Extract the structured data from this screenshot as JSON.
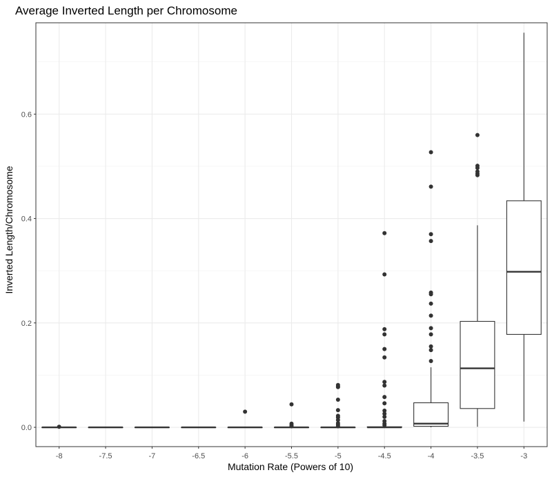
{
  "chart_data": {
    "type": "box",
    "title": "Average Inverted Length per Chromosome",
    "xlabel": "Mutation Rate (Powers of 10)",
    "ylabel": "Inverted Length/Chromosome",
    "categories": [
      "-8",
      "-7.5",
      "-7",
      "-6.5",
      "-6",
      "-5.5",
      "-5",
      "-4.5",
      "-4",
      "-3.5",
      "-3"
    ],
    "y_ticks": [
      0.0,
      0.2,
      0.4,
      0.6
    ],
    "y_tick_labels": [
      "0.0",
      "0.2",
      "0.4",
      "0.6"
    ],
    "ylim": [
      -0.037,
      0.775
    ],
    "grid": true,
    "boxes": [
      {
        "category": "-8",
        "lower_whisker": 0,
        "q1": 0,
        "median": 0,
        "q3": 0,
        "upper_whisker": 0,
        "outliers": [
          0.001
        ]
      },
      {
        "category": "-7.5",
        "lower_whisker": 0,
        "q1": 0,
        "median": 0,
        "q3": 0,
        "upper_whisker": 0,
        "outliers": []
      },
      {
        "category": "-7",
        "lower_whisker": 0,
        "q1": 0,
        "median": 0,
        "q3": 0,
        "upper_whisker": 0,
        "outliers": []
      },
      {
        "category": "-6.5",
        "lower_whisker": 0,
        "q1": 0,
        "median": 0,
        "q3": 0,
        "upper_whisker": 0,
        "outliers": []
      },
      {
        "category": "-6",
        "lower_whisker": 0,
        "q1": 0,
        "median": 0,
        "q3": 0,
        "upper_whisker": 0,
        "outliers": [
          0.03
        ]
      },
      {
        "category": "-5.5",
        "lower_whisker": 0,
        "q1": 0,
        "median": 0,
        "q3": 0,
        "upper_whisker": 0,
        "outliers": [
          0.044,
          0.007,
          0.004,
          0.002
        ]
      },
      {
        "category": "-5",
        "lower_whisker": 0,
        "q1": 0,
        "median": 0,
        "q3": 0,
        "upper_whisker": 0,
        "outliers": [
          0.081,
          0.078,
          0.077,
          0.053,
          0.033,
          0.022,
          0.019,
          0.014,
          0.008,
          0.005,
          0.002
        ]
      },
      {
        "category": "-4.5",
        "lower_whisker": 0,
        "q1": 0,
        "median": 0,
        "q3": 0.001,
        "upper_whisker": 0.002,
        "outliers": [
          0.372,
          0.293,
          0.188,
          0.178,
          0.15,
          0.134,
          0.087,
          0.08,
          0.058,
          0.046,
          0.032,
          0.026,
          0.02,
          0.012,
          0.007,
          0.004
        ]
      },
      {
        "category": "-4",
        "lower_whisker": 0,
        "q1": 0.002,
        "median": 0.007,
        "q3": 0.047,
        "upper_whisker": 0.115,
        "outliers": [
          0.527,
          0.461,
          0.37,
          0.357,
          0.258,
          0.255,
          0.237,
          0.214,
          0.19,
          0.178,
          0.155,
          0.148,
          0.127
        ]
      },
      {
        "category": "-3.5",
        "lower_whisker": 0.001,
        "q1": 0.036,
        "median": 0.113,
        "q3": 0.203,
        "upper_whisker": 0.387,
        "outliers": [
          0.56,
          0.501,
          0.497,
          0.49,
          0.486,
          0.483
        ]
      },
      {
        "category": "-3",
        "lower_whisker": 0.011,
        "q1": 0.178,
        "median": 0.298,
        "q3": 0.434,
        "upper_whisker": 0.756,
        "outliers": []
      }
    ]
  }
}
